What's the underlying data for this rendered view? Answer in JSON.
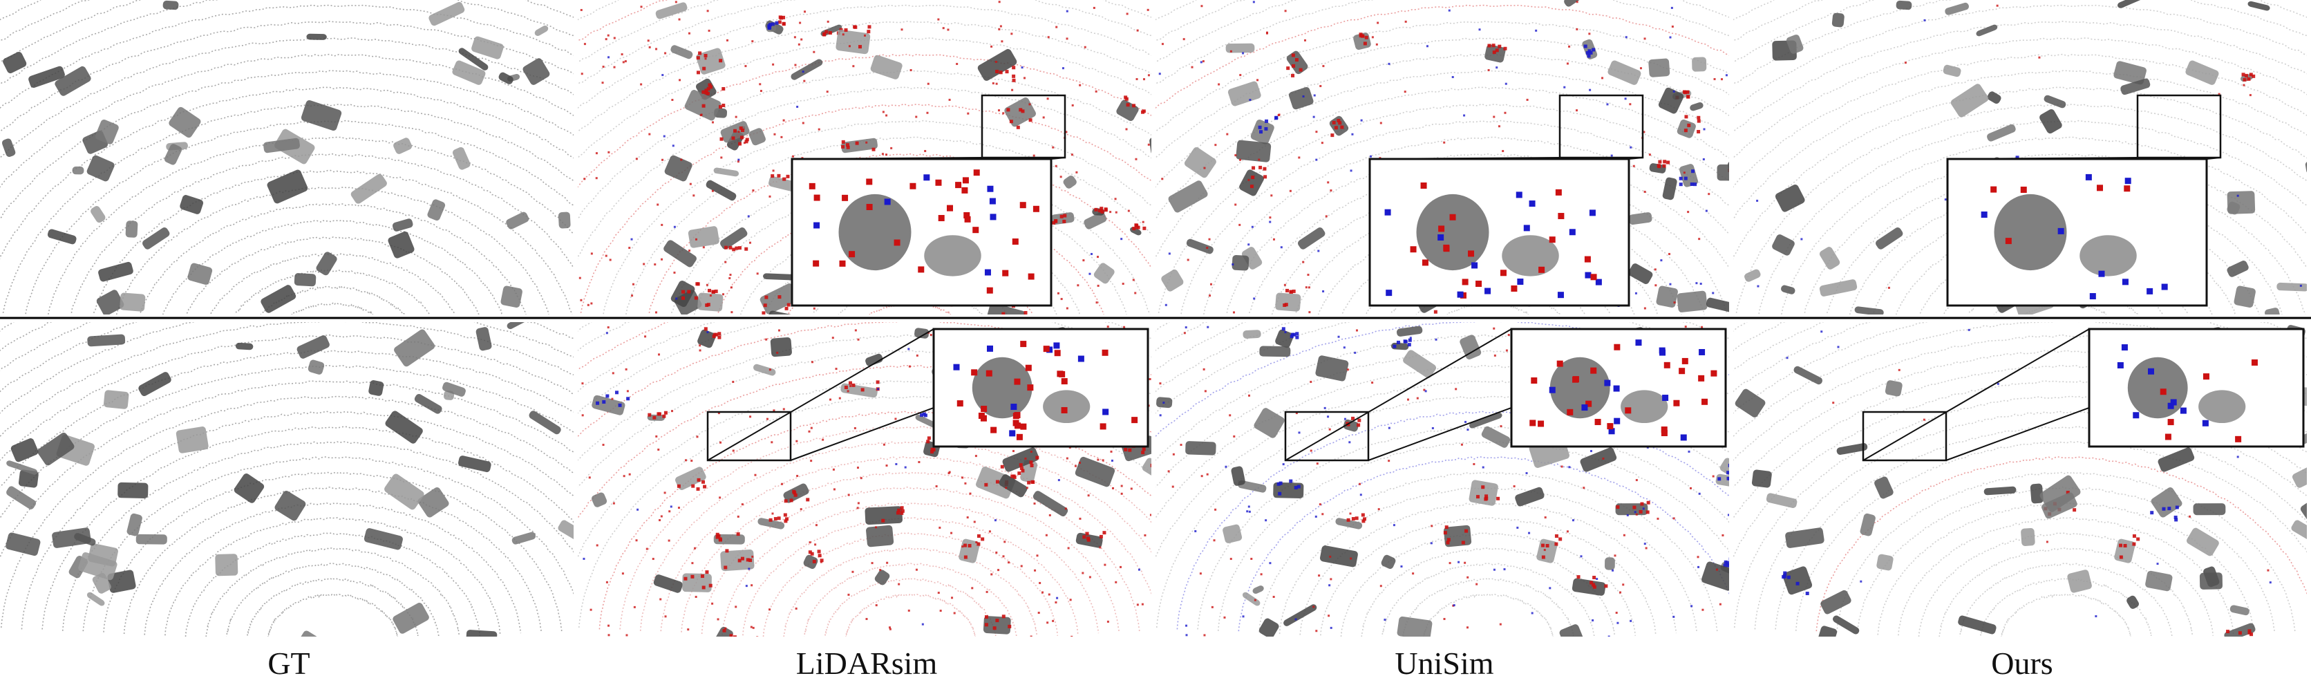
{
  "columns": [
    {
      "label": "GT",
      "diff": "none"
    },
    {
      "label": "LiDARsim",
      "diff": "red"
    },
    {
      "label": "UniSim",
      "diff": "mixed"
    },
    {
      "label": "Ours",
      "diff": "sparse"
    }
  ],
  "colors": {
    "points_gt": "#8a8a8a",
    "error_positive": "#cc1111",
    "error_negative": "#1a1acc",
    "separator": "#000000",
    "zoom_box": "#111111"
  }
}
